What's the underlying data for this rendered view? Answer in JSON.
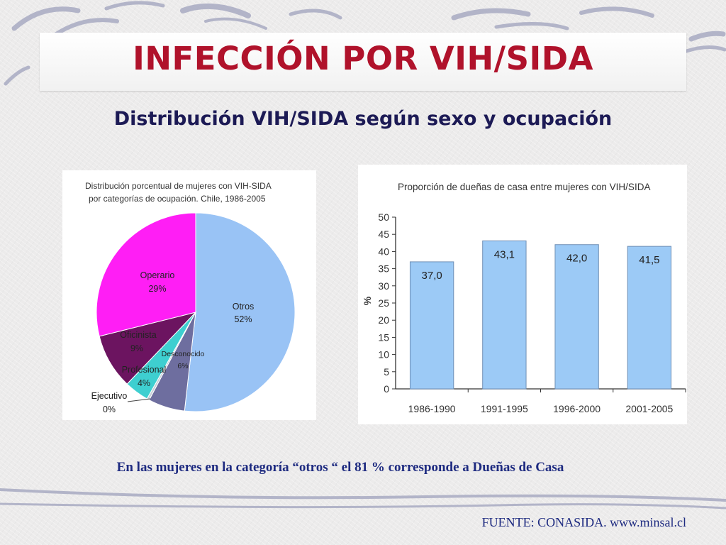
{
  "slide": {
    "title": "INFECCIÓN POR VIH/SIDA",
    "subtitle": "Distribución VIH/SIDA según sexo y ocupación",
    "note": "En las mujeres en la categoría “otros “ el 81 % corresponde a Dueñas de Casa",
    "source": "FUENTE: CONASIDA. www.minsal.cl"
  },
  "chart_data": [
    {
      "type": "pie",
      "title_lines": [
        "Distribución porcentual de mujeres con VIH-SIDA",
        "por categorías de ocupación. Chile, 1986-2005"
      ],
      "slices": [
        {
          "name": "Otros",
          "label": "52%",
          "value": 52,
          "color": "#99c3f5"
        },
        {
          "name": "Desconocido",
          "label": "6%",
          "value": 6,
          "color": "#6e6e9f"
        },
        {
          "name": "Ejecutivo",
          "label": "0%",
          "value": 0.4,
          "color": "#c8cfd8"
        },
        {
          "name": "Profesional",
          "label": "4%",
          "value": 4,
          "color": "#3ecfd0"
        },
        {
          "name": "Oficinista",
          "label": "9%",
          "value": 9,
          "color": "#6c1460"
        },
        {
          "name": "Operario",
          "label": "29%",
          "value": 29,
          "color": "#ff1ef5"
        }
      ]
    },
    {
      "type": "bar",
      "title": "Proporción de dueñas de casa entre mujeres con VIH/SIDA",
      "categories": [
        "1986-1990",
        "1991-1995",
        "1996-2000",
        "2001-2005"
      ],
      "values": [
        37.0,
        43.1,
        42.0,
        41.5
      ],
      "value_labels": [
        "37,0",
        "43,1",
        "42,0",
        "41,5"
      ],
      "ylabel": "%",
      "ylim": [
        0,
        50
      ],
      "yticks": [
        "0",
        "5",
        "10",
        "15",
        "20",
        "25",
        "30",
        "35",
        "40",
        "45",
        "50"
      ],
      "bar_color": "#9ccaf6",
      "grid": false
    }
  ]
}
